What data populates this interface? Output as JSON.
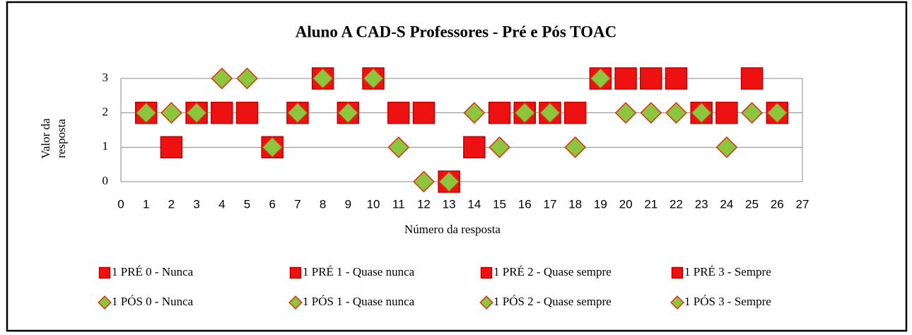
{
  "chart_data": {
    "type": "scatter",
    "title": "Aluno A CAD-S Professores -  Pré e Pós  TOAC",
    "xlabel": "Número da resposta",
    "ylabel": [
      "Valor da",
      "resposta"
    ],
    "xlim": [
      0,
      27
    ],
    "xticks": [
      0,
      1,
      2,
      3,
      4,
      5,
      6,
      7,
      8,
      9,
      10,
      11,
      12,
      13,
      14,
      15,
      16,
      17,
      18,
      19,
      20,
      21,
      22,
      23,
      24,
      25,
      26,
      27
    ],
    "ylim": [
      0,
      3
    ],
    "yticks": [
      0,
      1,
      2,
      3
    ],
    "grid": true,
    "legend": "bottom",
    "series": [
      {
        "name": "1 PRÉ 0 - Nunca",
        "marker": "square",
        "color": "#ee1111",
        "edgecolor": "#c00000",
        "x": [
          13
        ],
        "values": [
          0
        ]
      },
      {
        "name": "1 PRÉ 1 - Quase nunca",
        "marker": "square",
        "color": "#ee1111",
        "edgecolor": "#c00000",
        "x": [
          2,
          6,
          14
        ],
        "values": [
          1,
          1,
          1
        ]
      },
      {
        "name": "1 PRÉ 2 - Quase sempre",
        "marker": "square",
        "color": "#ee1111",
        "edgecolor": "#c00000",
        "x": [
          1,
          3,
          4,
          5,
          7,
          9,
          11,
          12,
          15,
          16,
          17,
          18,
          23,
          24,
          26
        ],
        "values": [
          2,
          2,
          2,
          2,
          2,
          2,
          2,
          2,
          2,
          2,
          2,
          2,
          2,
          2,
          2
        ]
      },
      {
        "name": "1 PRÉ 3 - Sempre",
        "marker": "square",
        "color": "#ee1111",
        "edgecolor": "#c00000",
        "x": [
          8,
          10,
          19,
          20,
          21,
          22,
          25
        ],
        "values": [
          3,
          3,
          3,
          3,
          3,
          3,
          3
        ]
      },
      {
        "name": "1 PÓS 0 - Nunca",
        "marker": "diamond",
        "color": "#8cc63f",
        "edgecolor": "#e03010",
        "x": [
          12,
          13
        ],
        "values": [
          0,
          0
        ]
      },
      {
        "name": "1 PÓS 1 - Quase nunca",
        "marker": "diamond",
        "color": "#8cc63f",
        "edgecolor": "#e03010",
        "x": [
          6,
          11,
          15,
          18,
          24
        ],
        "values": [
          1,
          1,
          1,
          1,
          1
        ]
      },
      {
        "name": "1 PÓS 2 - Quase sempre",
        "marker": "diamond",
        "color": "#8cc63f",
        "edgecolor": "#e03010",
        "x": [
          1,
          2,
          3,
          7,
          9,
          14,
          16,
          17,
          20,
          21,
          22,
          23,
          25,
          26
        ],
        "values": [
          2,
          2,
          2,
          2,
          2,
          2,
          2,
          2,
          2,
          2,
          2,
          2,
          2,
          2
        ]
      },
      {
        "name": "1 PÓS 3 - Sempre",
        "marker": "diamond",
        "color": "#8cc63f",
        "edgecolor": "#e03010",
        "x": [
          4,
          5,
          8,
          10,
          19
        ],
        "values": [
          3,
          3,
          3,
          3,
          3
        ]
      }
    ]
  }
}
